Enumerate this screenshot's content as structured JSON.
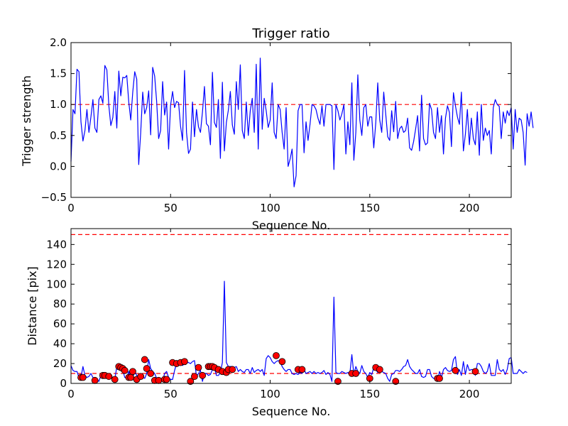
{
  "chart_data": [
    {
      "type": "line",
      "title": "Trigger ratio",
      "xlabel": "Sequence No.",
      "ylabel": "Trigger strength",
      "xlim": [
        0,
        221
      ],
      "ylim": [
        -0.5,
        2.0
      ],
      "xticks": [
        0,
        50,
        100,
        150,
        200
      ],
      "xtick_labels": [
        "0",
        "50",
        "100",
        "150",
        "200"
      ],
      "yticks": [
        -0.5,
        0.0,
        0.5,
        1.0,
        1.5,
        2.0
      ],
      "ytick_labels": [
        "−0.5",
        "0.0",
        "0.5",
        "1.0",
        "1.5",
        "2.0"
      ],
      "line_color": "#0000ff",
      "threshold_color": "#ff0000",
      "thresholds": [
        1.0
      ],
      "series": [
        {
          "name": "Trigger strength",
          "values": [
            0.08,
            0.92,
            0.85,
            1.57,
            1.53,
            0.72,
            0.41,
            0.58,
            0.92,
            0.55,
            0.8,
            1.08,
            0.62,
            0.55,
            1.08,
            1.14,
            1.02,
            1.63,
            1.56,
            0.98,
            0.66,
            0.79,
            1.21,
            0.62,
            1.54,
            1.14,
            1.44,
            1.43,
            1.47,
            1.04,
            0.75,
            1.2,
            1.53,
            1.41,
            0.03,
            0.55,
            1.2,
            0.85,
            0.95,
            1.22,
            0.51,
            1.6,
            1.46,
            1.05,
            0.45,
            0.58,
            1.37,
            0.83,
            1.04,
            0.28,
            0.99,
            1.21,
            0.95,
            1.05,
            1.03,
            0.65,
            0.42,
            1.55,
            0.55,
            0.21,
            0.28,
            1.04,
            0.48,
            0.92,
            0.64,
            0.55,
            0.88,
            1.29,
            0.69,
            0.65,
            0.35,
            1.52,
            0.71,
            0.63,
            1.08,
            0.13,
            1.36,
            0.25,
            0.71,
            0.91,
            1.21,
            0.67,
            0.52,
            1.37,
            0.92,
            1.64,
            0.58,
            0.45,
            1.04,
            0.5,
            0.9,
            1.1,
            0.55,
            1.65,
            0.28,
            1.75,
            0.6,
            1.1,
            0.9,
            0.63,
            0.75,
            1.35,
            0.55,
            0.45,
            1.0,
            0.92,
            0.55,
            0.28,
            0.95,
            0.0,
            0.12,
            0.28,
            -0.33,
            -0.15,
            0.9,
            1.0,
            1.0,
            0.22,
            0.72,
            0.42,
            0.68,
            1.0,
            0.98,
            0.92,
            0.78,
            0.68,
            0.98,
            0.65,
            1.0,
            1.0,
            1.0,
            0.98,
            -0.05,
            1.0,
            0.9,
            0.75,
            0.85,
            1.0,
            0.2,
            0.72,
            0.35,
            1.35,
            0.1,
            0.55,
            1.48,
            0.75,
            0.5,
            0.95,
            1.0,
            0.65,
            0.8,
            0.8,
            0.3,
            0.7,
            1.35,
            0.75,
            0.55,
            1.2,
            0.85,
            0.48,
            0.42,
            0.9,
            0.56,
            1.05,
            0.45,
            0.61,
            0.65,
            0.55,
            0.58,
            0.78,
            0.3,
            0.26,
            0.4,
            0.6,
            0.82,
            0.25,
            1.15,
            0.45,
            0.35,
            0.38,
            1.02,
            0.92,
            0.55,
            0.45,
            0.95,
            0.55,
            0.82,
            0.2,
            0.78,
            0.98,
            0.87,
            0.32,
            1.19,
            0.98,
            0.8,
            0.68,
            1.2,
            0.25,
            0.52,
            0.92,
            0.35,
            0.78,
            0.45,
            0.35,
            0.88,
            0.18,
            1.0,
            0.42,
            0.62,
            0.5,
            0.58,
            0.2,
            0.95,
            1.08,
            1.0,
            0.97,
            0.45,
            0.88,
            0.7,
            0.9,
            0.82,
            0.95,
            0.28,
            0.92,
            0.55,
            0.78,
            0.75,
            0.55,
            0.02,
            0.85,
            0.65,
            0.88,
            0.62
          ]
        }
      ]
    },
    {
      "type": "line",
      "title": "",
      "xlabel": "Sequence No.",
      "ylabel": "Distance [pix]",
      "xlim": [
        0,
        221
      ],
      "ylim": [
        0,
        156
      ],
      "xticks": [
        0,
        50,
        100,
        150,
        200
      ],
      "xtick_labels": [
        "0",
        "50",
        "100",
        "150",
        "200"
      ],
      "yticks": [
        0,
        20,
        40,
        60,
        80,
        100,
        120,
        140
      ],
      "ytick_labels": [
        "0",
        "20",
        "40",
        "60",
        "80",
        "100",
        "120",
        "140"
      ],
      "line_color": "#0000ff",
      "marker_color": "#ff0000",
      "threshold_color": "#ff0000",
      "thresholds": [
        150,
        10
      ],
      "series": [
        {
          "name": "Distance",
          "values": [
            18,
            13,
            12,
            12,
            6,
            6,
            17,
            8,
            6,
            7,
            10,
            6,
            3,
            4,
            2,
            8,
            8,
            8,
            7,
            6,
            9,
            5,
            4,
            17,
            16,
            15,
            13,
            6,
            6,
            12,
            6,
            6,
            12,
            8,
            4,
            10,
            7,
            5,
            10,
            24,
            15,
            12,
            10,
            5,
            3,
            3,
            3,
            10,
            12,
            6,
            4,
            4,
            13,
            20,
            21,
            20,
            18,
            20,
            21,
            21,
            20,
            22,
            23,
            7,
            10,
            13,
            2,
            10,
            10,
            8,
            9,
            14,
            16,
            8,
            8,
            11,
            21,
            103,
            21,
            17,
            17,
            17,
            16,
            17,
            12,
            14,
            12,
            11,
            14,
            14,
            10,
            16,
            11,
            13,
            14,
            12,
            14,
            8,
            25,
            28,
            26,
            22,
            20,
            22,
            23,
            22,
            17,
            14,
            12,
            14,
            14,
            10,
            9,
            10,
            9,
            11,
            10,
            14,
            10,
            11,
            12,
            10,
            12,
            10,
            11,
            10,
            11,
            13,
            9,
            11,
            9,
            2,
            87,
            11,
            10,
            10,
            12,
            11,
            10,
            11,
            10,
            29,
            9,
            17,
            12,
            10,
            18,
            12,
            10,
            6,
            11,
            9,
            16,
            14,
            11,
            14,
            12,
            11,
            10,
            5,
            2,
            9,
            10,
            13,
            13,
            12,
            14,
            17,
            18,
            24,
            17,
            14,
            12,
            10,
            10,
            14,
            7,
            6,
            7,
            14,
            14,
            7,
            5,
            5,
            3,
            12,
            6,
            14,
            16,
            13,
            12,
            13,
            24,
            27,
            9,
            14,
            8,
            22,
            9,
            19,
            13,
            14,
            14,
            8,
            20,
            20,
            17,
            12,
            10,
            12,
            20,
            8,
            8,
            8,
            24,
            14,
            12,
            14,
            9,
            14,
            25,
            26,
            10,
            10,
            10,
            14,
            12,
            10,
            12,
            11
          ],
          "markers": [
            [
              5,
              6
            ],
            [
              6,
              6
            ],
            [
              12,
              3
            ],
            [
              16,
              8
            ],
            [
              17,
              8
            ],
            [
              19,
              7
            ],
            [
              22,
              4
            ],
            [
              24,
              17
            ],
            [
              25,
              16
            ],
            [
              26,
              15
            ],
            [
              27,
              13
            ],
            [
              29,
              6
            ],
            [
              30,
              6
            ],
            [
              31,
              12
            ],
            [
              33,
              4
            ],
            [
              35,
              7
            ],
            [
              37,
              24
            ],
            [
              38,
              15
            ],
            [
              40,
              10
            ],
            [
              42,
              3
            ],
            [
              44,
              3
            ],
            [
              47,
              4
            ],
            [
              48,
              4
            ],
            [
              51,
              21
            ],
            [
              53,
              20
            ],
            [
              55,
              21
            ],
            [
              57,
              22
            ],
            [
              60,
              2
            ],
            [
              62,
              7
            ],
            [
              64,
              16
            ],
            [
              66,
              8
            ],
            [
              69,
              17
            ],
            [
              70,
              17
            ],
            [
              71,
              17
            ],
            [
              72,
              16
            ],
            [
              74,
              14
            ],
            [
              76,
              12
            ],
            [
              78,
              11
            ],
            [
              79,
              14
            ],
            [
              81,
              14
            ],
            [
              103,
              28
            ],
            [
              106,
              22
            ],
            [
              114,
              14
            ],
            [
              116,
              14
            ],
            [
              134,
              2
            ],
            [
              141,
              10
            ],
            [
              143,
              10
            ],
            [
              150,
              5
            ],
            [
              153,
              16
            ],
            [
              155,
              14
            ],
            [
              163,
              2
            ],
            [
              184,
              5
            ],
            [
              185,
              5
            ],
            [
              193,
              13
            ],
            [
              203,
              12
            ]
          ]
        }
      ]
    }
  ]
}
